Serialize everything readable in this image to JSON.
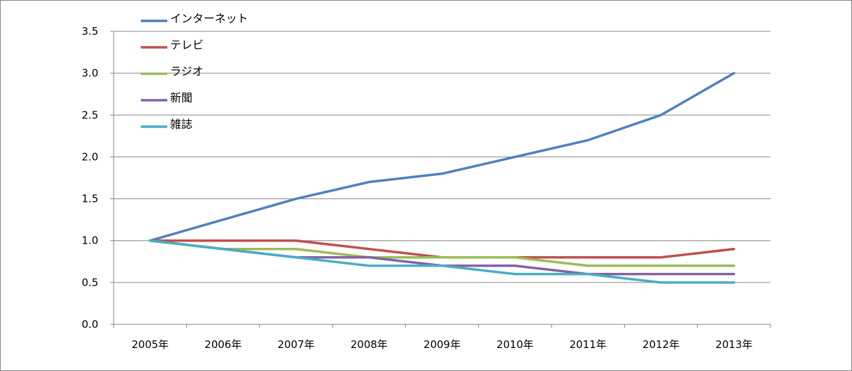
{
  "chart_data": {
    "type": "line",
    "title": "",
    "xlabel": "",
    "ylabel": "",
    "categories": [
      "2005年",
      "2006年",
      "2007年",
      "2008年",
      "2009年",
      "2010年",
      "2011年",
      "2012年",
      "2013年"
    ],
    "ylim": [
      0,
      3.5
    ],
    "y_ticks": [
      "0.0",
      "0.5",
      "1.0",
      "1.5",
      "2.0",
      "2.5",
      "3.0",
      "3.5"
    ],
    "grid": "horizontal",
    "legend_position": "top-left",
    "series": [
      {
        "name": "インターネット",
        "color": "#4F81BD",
        "values": [
          1.0,
          1.25,
          1.5,
          1.7,
          1.8,
          2.0,
          2.2,
          2.5,
          3.0
        ]
      },
      {
        "name": "テレビ",
        "color": "#C0504D",
        "values": [
          1.0,
          1.0,
          1.0,
          0.9,
          0.8,
          0.8,
          0.8,
          0.8,
          0.9
        ]
      },
      {
        "name": "ラジオ",
        "color": "#9BBB59",
        "values": [
          1.0,
          0.9,
          0.9,
          0.8,
          0.8,
          0.8,
          0.7,
          0.7,
          0.7
        ]
      },
      {
        "name": "新聞",
        "color": "#8064A2",
        "values": [
          1.0,
          0.9,
          0.8,
          0.8,
          0.7,
          0.7,
          0.6,
          0.6,
          0.6
        ]
      },
      {
        "name": "雑誌",
        "color": "#4BACC6",
        "values": [
          1.0,
          0.9,
          0.8,
          0.7,
          0.7,
          0.6,
          0.6,
          0.5,
          0.5
        ]
      }
    ]
  }
}
